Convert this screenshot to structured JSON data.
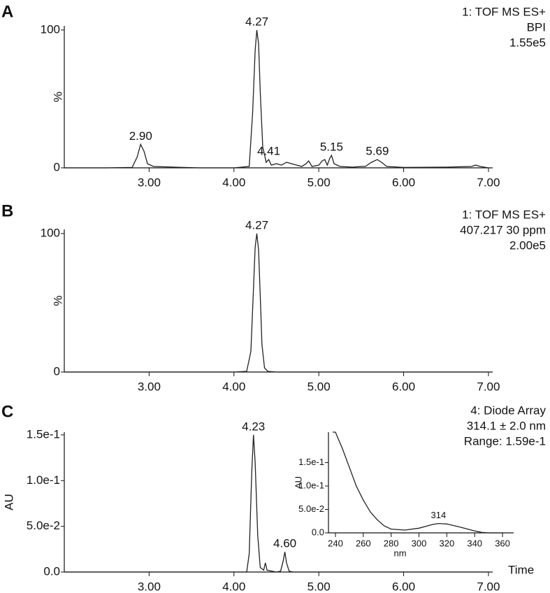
{
  "chart_data": [
    {
      "type": "line",
      "panel": "A",
      "header": [
        "1: TOF MS ES+",
        "BPI",
        "1.55e5"
      ],
      "ylabel": "%",
      "x": [
        2.0,
        2.5,
        2.8,
        2.86,
        2.9,
        2.94,
        2.98,
        3.05,
        3.3,
        3.6,
        4.0,
        4.18,
        4.22,
        4.25,
        4.27,
        4.29,
        4.31,
        4.34,
        4.38,
        4.41,
        4.44,
        4.5,
        4.56,
        4.62,
        4.68,
        4.74,
        4.8,
        4.85,
        4.88,
        4.92,
        5.0,
        5.04,
        5.07,
        5.1,
        5.13,
        5.15,
        5.18,
        5.25,
        5.4,
        5.5,
        5.55,
        5.62,
        5.69,
        5.74,
        5.8,
        6.0,
        6.5,
        6.8,
        6.85,
        6.9,
        7.0
      ],
      "values": [
        0,
        0,
        0.3,
        8,
        17,
        12,
        3,
        1,
        0.5,
        0,
        0,
        1,
        40,
        85,
        100,
        90,
        55,
        15,
        4,
        6,
        2,
        3,
        2,
        4,
        3,
        2,
        1,
        3,
        5,
        1,
        2,
        5,
        6,
        2,
        7,
        9,
        3,
        1,
        0.5,
        1,
        1,
        4,
        6,
        4,
        1,
        0.3,
        0.5,
        1,
        2,
        1,
        0
      ],
      "color": "#222222",
      "xlim": [
        2.0,
        7.05
      ],
      "ylim": [
        0,
        103
      ],
      "xticks": [
        {
          "value": 3,
          "label": "3.00"
        },
        {
          "value": 4,
          "label": "4.00"
        },
        {
          "value": 5,
          "label": "5.00"
        },
        {
          "value": 6,
          "label": "6.00"
        },
        {
          "value": 7,
          "label": "7.00"
        }
      ],
      "yticks": [
        0,
        100
      ],
      "annotations": [
        {
          "x": 2.9,
          "y": 17,
          "label": "2.90"
        },
        {
          "x": 4.27,
          "y": 100,
          "label": "4.27"
        },
        {
          "x": 4.41,
          "y": 6,
          "label": "4.41"
        },
        {
          "x": 5.15,
          "y": 9,
          "label": "5.15"
        },
        {
          "x": 5.69,
          "y": 6,
          "label": "5.69"
        }
      ]
    },
    {
      "type": "line",
      "panel": "B",
      "header": [
        "1: TOF MS ES+",
        "407.217  30 ppm",
        "2.00e5"
      ],
      "ylabel": "%",
      "x": [
        2.0,
        4.0,
        4.15,
        4.2,
        4.23,
        4.25,
        4.27,
        4.29,
        4.31,
        4.33,
        4.36,
        4.4,
        4.5,
        5.0,
        7.0
      ],
      "values": [
        0,
        0,
        0.5,
        15,
        60,
        90,
        100,
        88,
        55,
        20,
        3,
        0.5,
        0,
        0,
        0
      ],
      "color": "#222222",
      "xlim": [
        2.0,
        7.05
      ],
      "ylim": [
        0,
        103
      ],
      "xticks": [
        {
          "value": 3,
          "label": "3.00"
        },
        {
          "value": 4,
          "label": "4.00"
        },
        {
          "value": 5,
          "label": "5.00"
        },
        {
          "value": 6,
          "label": "6.00"
        },
        {
          "value": 7,
          "label": "7.00"
        }
      ],
      "yticks": [
        0,
        100
      ],
      "annotations": [
        {
          "x": 4.27,
          "y": 100,
          "label": "4.27"
        }
      ]
    },
    {
      "type": "line",
      "panel": "C",
      "header": [
        "4: Diode Array",
        "314.1 ± 2.0 nm",
        "Range: 1.59e-1"
      ],
      "ylabel": "AU",
      "xlabel": "Time",
      "x": [
        2.0,
        4.0,
        4.15,
        4.18,
        4.21,
        4.23,
        4.25,
        4.28,
        4.31,
        4.35,
        4.37,
        4.39,
        4.5,
        4.55,
        4.58,
        4.6,
        4.62,
        4.65,
        4.7,
        5.0,
        7.0
      ],
      "values": [
        0,
        0,
        0,
        0.02,
        0.11,
        0.15,
        0.12,
        0.04,
        0.005,
        0.002,
        0.01,
        0.002,
        0,
        0.001,
        0.012,
        0.022,
        0.01,
        0.001,
        0,
        0,
        0
      ],
      "color": "#222222",
      "xlim": [
        2.0,
        7.05
      ],
      "ylim": [
        0,
        0.153
      ],
      "xticks": [
        {
          "value": 3,
          "label": "3.00"
        },
        {
          "value": 4,
          "label": "4.00"
        },
        {
          "value": 5,
          "label": "5.00"
        },
        {
          "value": 6,
          "label": "6.00"
        },
        {
          "value": 7,
          "label": "7.00"
        }
      ],
      "yticks": [
        {
          "value": 0,
          "label": "0.0"
        },
        {
          "value": 0.05,
          "label": "5.0e-2"
        },
        {
          "value": 0.1,
          "label": "1.0e-1"
        },
        {
          "value": 0.15,
          "label": "1.5e-1"
        }
      ],
      "annotations": [
        {
          "x": 4.23,
          "y": 0.15,
          "label": "4.23"
        },
        {
          "x": 4.6,
          "y": 0.022,
          "label": "4.60"
        }
      ]
    },
    {
      "type": "line",
      "ylabel": "AU",
      "xlabel": "nm",
      "x": [
        238,
        240,
        245,
        250,
        255,
        260,
        265,
        270,
        275,
        280,
        290,
        300,
        305,
        310,
        314,
        320,
        330,
        340,
        345,
        350,
        360
      ],
      "values": [
        0.215,
        0.215,
        0.18,
        0.14,
        0.1,
        0.07,
        0.045,
        0.028,
        0.015,
        0.008,
        0.006,
        0.01,
        0.014,
        0.018,
        0.02,
        0.019,
        0.012,
        0.004,
        0.001,
        0,
        0
      ],
      "color": "#222222",
      "xlim": [
        235,
        368
      ],
      "ylim": [
        0,
        0.215
      ],
      "xticks": [
        240,
        260,
        280,
        300,
        320,
        340,
        360
      ],
      "yticks": [
        {
          "value": 0,
          "label": "0.0"
        },
        {
          "value": 0.05,
          "label": "5.0e-2"
        },
        {
          "value": 0.1,
          "label": "1.0e-1"
        },
        {
          "value": 0.15,
          "label": "1.5e-1"
        }
      ],
      "annotations": [
        {
          "x": 314,
          "y": 0.02,
          "label": "314"
        }
      ]
    }
  ]
}
